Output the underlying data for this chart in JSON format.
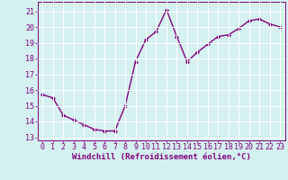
{
  "x": [
    0,
    1,
    2,
    3,
    4,
    5,
    6,
    7,
    8,
    9,
    10,
    11,
    12,
    13,
    14,
    15,
    16,
    17,
    18,
    19,
    20,
    21,
    22,
    23
  ],
  "y": [
    15.7,
    15.5,
    14.4,
    14.1,
    13.8,
    13.5,
    13.4,
    13.4,
    15.0,
    17.8,
    19.2,
    19.7,
    21.1,
    19.4,
    17.8,
    18.4,
    18.9,
    19.4,
    19.5,
    19.9,
    20.4,
    20.5,
    20.2,
    20.0
  ],
  "line_color": "#800080",
  "marker": "D",
  "marker_size": 2,
  "bg_color": "#d5f0f0",
  "grid_color": "#ffffff",
  "xlabel": "Windchill (Refroidissement éolien,°C)",
  "xlim": [
    -0.5,
    23.5
  ],
  "ylim": [
    12.8,
    21.6
  ],
  "yticks": [
    13,
    14,
    15,
    16,
    17,
    18,
    19,
    20,
    21
  ],
  "xticks": [
    0,
    1,
    2,
    3,
    4,
    5,
    6,
    7,
    8,
    9,
    10,
    11,
    12,
    13,
    14,
    15,
    16,
    17,
    18,
    19,
    20,
    21,
    22,
    23
  ],
  "label_color": "#800080",
  "tick_color": "#800080",
  "axis_color": "#800080",
  "tick_fontsize": 6,
  "xlabel_fontsize": 6.5,
  "line_width": 1.0
}
